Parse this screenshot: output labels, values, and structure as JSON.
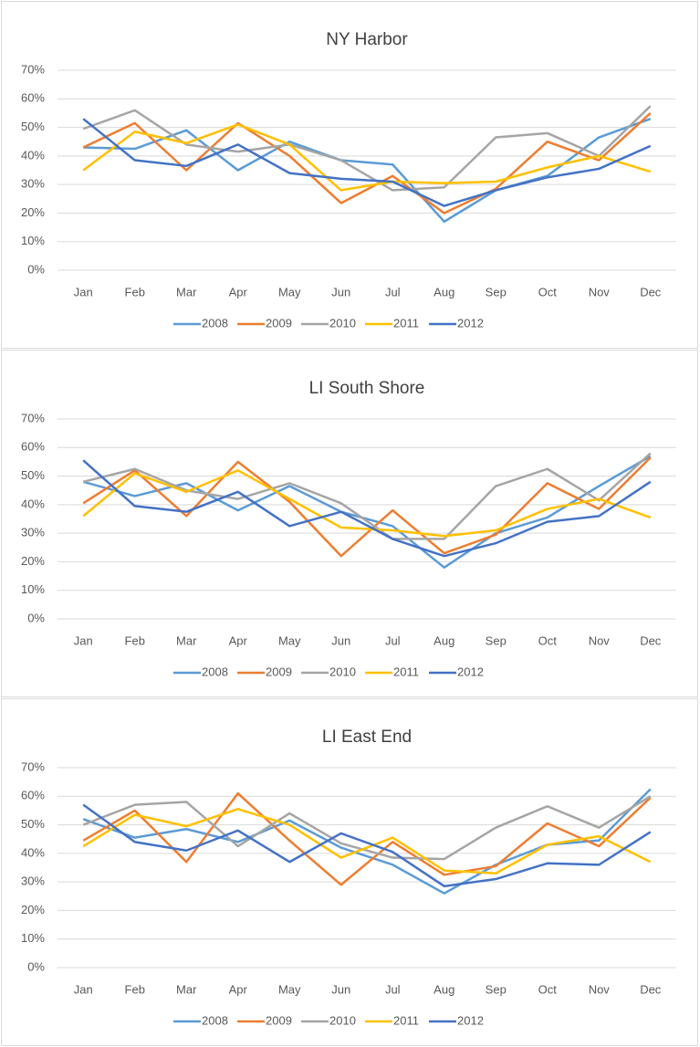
{
  "chart_data": [
    {
      "type": "line",
      "title": "NY Harbor",
      "categories": [
        "Jan",
        "Feb",
        "Mar",
        "Apr",
        "May",
        "Jun",
        "Jul",
        "Aug",
        "Sep",
        "Oct",
        "Nov",
        "Dec"
      ],
      "ylim": [
        0,
        70
      ],
      "yticks": [
        {
          "value": 0,
          "label": "0%"
        },
        {
          "value": 10,
          "label": "10%"
        },
        {
          "value": 20,
          "label": "20%"
        },
        {
          "value": 30,
          "label": "30%"
        },
        {
          "value": 40,
          "label": "40%"
        },
        {
          "value": 50,
          "label": "50%"
        },
        {
          "value": 60,
          "label": "60%"
        },
        {
          "value": 70,
          "label": "70%"
        }
      ],
      "grid": true,
      "legend": "bottom",
      "series": [
        {
          "name": "2008",
          "color": "#5b9bd5",
          "values": [
            43,
            42.5,
            49,
            35,
            45,
            38.5,
            37,
            17,
            28,
            33,
            46.5,
            53
          ]
        },
        {
          "name": "2009",
          "color": "#ed7d31",
          "values": [
            43,
            51.5,
            35,
            51.5,
            40,
            23.5,
            33,
            20,
            28.5,
            45,
            38.5,
            55
          ]
        },
        {
          "name": "2010",
          "color": "#a5a5a5",
          "values": [
            49.5,
            56,
            44,
            41.5,
            44,
            38.5,
            28,
            29,
            46.5,
            48,
            40,
            57.5
          ]
        },
        {
          "name": "2011",
          "color": "#ffc000",
          "values": [
            35,
            48.5,
            44.5,
            51,
            44,
            28,
            31,
            30.5,
            31,
            36,
            40,
            34.5
          ]
        },
        {
          "name": "2012",
          "color": "#4472c4",
          "values": [
            53,
            38.5,
            36.5,
            44,
            34,
            32,
            31,
            22.5,
            28,
            32.5,
            35.5,
            43.5
          ]
        }
      ]
    },
    {
      "type": "line",
      "title": "LI South Shore",
      "categories": [
        "Jan",
        "Feb",
        "Mar",
        "Apr",
        "May",
        "Jun",
        "Jul",
        "Aug",
        "Sep",
        "Oct",
        "Nov",
        "Dec"
      ],
      "ylim": [
        0,
        70
      ],
      "yticks": [
        {
          "value": 0,
          "label": "0%"
        },
        {
          "value": 10,
          "label": "10%"
        },
        {
          "value": 20,
          "label": "20%"
        },
        {
          "value": 30,
          "label": "30%"
        },
        {
          "value": 40,
          "label": "40%"
        },
        {
          "value": 50,
          "label": "50%"
        },
        {
          "value": 60,
          "label": "60%"
        },
        {
          "value": 70,
          "label": "70%"
        }
      ],
      "grid": true,
      "legend": "bottom",
      "series": [
        {
          "name": "2008",
          "color": "#5b9bd5",
          "values": [
            48,
            43,
            47.5,
            38,
            46.5,
            37.5,
            32.5,
            18,
            30,
            35.5,
            46.5,
            57
          ]
        },
        {
          "name": "2009",
          "color": "#ed7d31",
          "values": [
            40.5,
            52,
            36,
            55,
            41,
            22,
            38,
            23,
            29.5,
            47.5,
            38.5,
            56.5
          ]
        },
        {
          "name": "2010",
          "color": "#a5a5a5",
          "values": [
            48,
            52.5,
            45,
            42,
            47.5,
            40.5,
            28,
            28,
            46.5,
            52.5,
            41.5,
            58
          ]
        },
        {
          "name": "2011",
          "color": "#ffc000",
          "values": [
            36,
            51,
            44.5,
            52,
            42,
            32,
            31,
            29,
            31,
            38.5,
            42,
            35.5
          ]
        },
        {
          "name": "2012",
          "color": "#4472c4",
          "values": [
            55.5,
            39.5,
            37.5,
            44.5,
            32.5,
            37.5,
            28,
            22,
            26.5,
            34,
            36,
            48
          ]
        }
      ]
    },
    {
      "type": "line",
      "title": "LI East End",
      "categories": [
        "Jan",
        "Feb",
        "Mar",
        "Apr",
        "May",
        "Jun",
        "Jul",
        "Aug",
        "Sep",
        "Oct",
        "Nov",
        "Dec"
      ],
      "ylim": [
        0,
        70
      ],
      "yticks": [
        {
          "value": 0,
          "label": "0%"
        },
        {
          "value": 10,
          "label": "10%"
        },
        {
          "value": 20,
          "label": "20%"
        },
        {
          "value": 30,
          "label": "30%"
        },
        {
          "value": 40,
          "label": "40%"
        },
        {
          "value": 50,
          "label": "50%"
        },
        {
          "value": 60,
          "label": "60%"
        },
        {
          "value": 70,
          "label": "70%"
        }
      ],
      "grid": true,
      "legend": "bottom",
      "series": [
        {
          "name": "2008",
          "color": "#5b9bd5",
          "values": [
            52,
            45.5,
            48.5,
            44,
            51.5,
            42,
            36,
            26,
            36,
            43,
            44.5,
            62.5
          ]
        },
        {
          "name": "2009",
          "color": "#ed7d31",
          "values": [
            44.5,
            55,
            37,
            61,
            44.5,
            29,
            44,
            32.5,
            35.5,
            50.5,
            42.5,
            59.5
          ]
        },
        {
          "name": "2010",
          "color": "#a5a5a5",
          "values": [
            50,
            57,
            58,
            42.5,
            54,
            43.5,
            38.5,
            38,
            49,
            56.5,
            49,
            60
          ]
        },
        {
          "name": "2011",
          "color": "#ffc000",
          "values": [
            42.5,
            53.5,
            49.5,
            55.5,
            50,
            38.5,
            45.5,
            34,
            33,
            43,
            46,
            37
          ]
        },
        {
          "name": "2012",
          "color": "#4472c4",
          "values": [
            57,
            44,
            41,
            48,
            37,
            47,
            40.5,
            28.5,
            31,
            36.5,
            36,
            47.5
          ]
        }
      ]
    }
  ]
}
